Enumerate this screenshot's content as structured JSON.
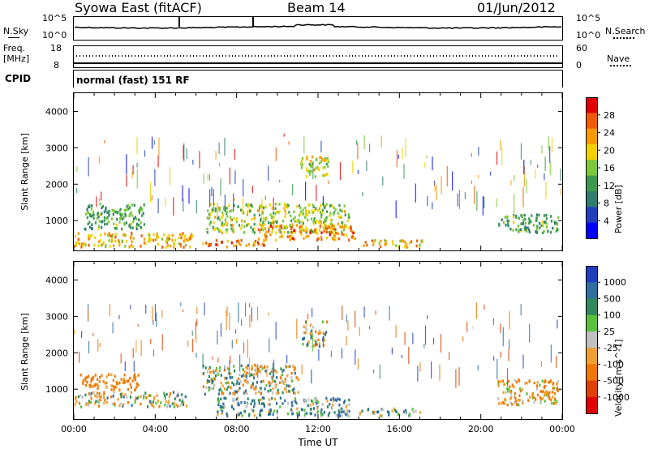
{
  "header": {
    "station": "Syowa East (fitACF)",
    "beam": "Beam 14",
    "date": "01/Jun/2012"
  },
  "noise_panel": {
    "left_label": "N.Sky",
    "left_ticks": [
      "10^5",
      "10^0"
    ],
    "right_label": "N.Search",
    "right_ticks": [
      "10^5",
      "10^0"
    ]
  },
  "freq_panel": {
    "left_label_top": "Freq.",
    "left_label_bottom": "[MHz]",
    "left_ticks": [
      "18",
      "8"
    ],
    "right_label": "Nave",
    "right_ticks": [
      "60",
      "0"
    ]
  },
  "cpid": {
    "label": "CPID",
    "value": "normal (fast) 151 RF"
  },
  "x_axis": {
    "title": "Time UT",
    "ticks": [
      "00:00",
      "04:00",
      "08:00",
      "12:00",
      "16:00",
      "20:00",
      "00:00"
    ]
  },
  "y_axis": {
    "title": "Slant Range [km]",
    "ticks": [
      "1000",
      "2000",
      "3000",
      "4000"
    ]
  },
  "power_colorbar": {
    "title": "Power [dB]",
    "ticks": [
      "4",
      "8",
      "12",
      "16",
      "20",
      "24",
      "28"
    ],
    "colors": [
      "#0000ff",
      "#1f3fbf",
      "#2e7d6e",
      "#3c9a4f",
      "#7cc83a",
      "#f0d000",
      "#f59a00",
      "#f05a00",
      "#e00000"
    ]
  },
  "velocity_colorbar": {
    "title": "Velocity [m s^-1]",
    "ticks": [
      "1000",
      "500",
      "100",
      "25",
      "-25",
      "-100",
      "-500",
      "-1000"
    ],
    "colors": [
      "#1f3fbf",
      "#2e6fa0",
      "#2e8a5e",
      "#58c23a",
      "#c0c0c0",
      "#f0a030",
      "#f07800",
      "#e04000",
      "#e00000"
    ]
  },
  "chart_data": [
    {
      "type": "heatmap",
      "title": "Power [dB]",
      "xlabel": "Time UT",
      "ylabel": "Slant Range [km]",
      "xlim": [
        "00:00",
        "24:00"
      ],
      "ylim": [
        180,
        4500
      ],
      "colorbar_range": [
        0,
        30
      ],
      "regions": [
        {
          "t0": 0.0,
          "t1": 5.8,
          "r0": 300,
          "r1": 700,
          "value": 20
        },
        {
          "t0": 0.5,
          "t1": 3.5,
          "r0": 800,
          "r1": 1500,
          "value": 12
        },
        {
          "t0": 6.3,
          "t1": 9.5,
          "r0": 300,
          "r1": 500,
          "value": 24
        },
        {
          "t0": 6.5,
          "t1": 13.5,
          "r0": 700,
          "r1": 1500,
          "value": 16
        },
        {
          "t0": 9.0,
          "t1": 13.8,
          "r0": 500,
          "r1": 900,
          "value": 22
        },
        {
          "t0": 11.0,
          "t1": 12.5,
          "r0": 2200,
          "r1": 2800,
          "value": 18
        },
        {
          "t0": 14.2,
          "t1": 17.2,
          "r0": 300,
          "r1": 500,
          "value": 20
        },
        {
          "t0": 20.8,
          "t1": 23.8,
          "r0": 700,
          "r1": 1200,
          "value": 12
        }
      ]
    },
    {
      "type": "heatmap",
      "title": "Velocity [m s^-1]",
      "xlabel": "Time UT",
      "ylabel": "Slant Range [km]",
      "xlim": [
        "00:00",
        "24:00"
      ],
      "ylim": [
        180,
        4500
      ],
      "colorbar_range": [
        -1000,
        1000
      ],
      "regions": [
        {
          "t0": 0.3,
          "t1": 3.2,
          "r0": 1000,
          "r1": 1450,
          "value": -200
        },
        {
          "t0": 0.0,
          "t1": 5.5,
          "r0": 550,
          "r1": 950,
          "value": 0
        },
        {
          "t0": 6.3,
          "t1": 11.0,
          "r0": 900,
          "r1": 1700,
          "value": 0
        },
        {
          "t0": 7.0,
          "t1": 13.5,
          "r0": 300,
          "r1": 800,
          "value": 80
        },
        {
          "t0": 11.2,
          "t1": 12.4,
          "r0": 2200,
          "r1": 2900,
          "value": 0
        },
        {
          "t0": 14.0,
          "t1": 17.0,
          "r0": 300,
          "r1": 500,
          "value": 60
        },
        {
          "t0": 20.8,
          "t1": 23.8,
          "r0": 600,
          "r1": 1300,
          "value": -100
        }
      ]
    }
  ]
}
